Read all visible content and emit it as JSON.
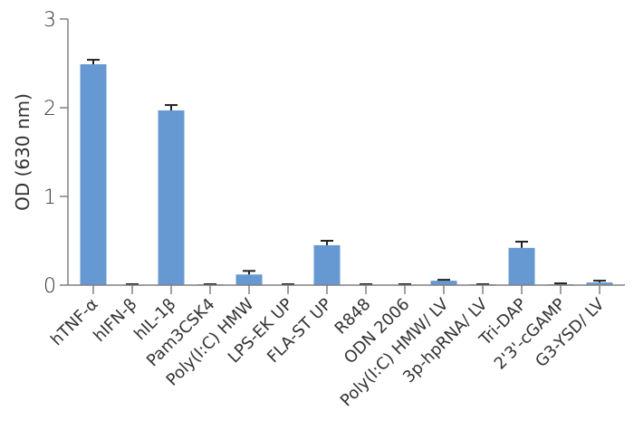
{
  "chart_data": {
    "type": "bar",
    "title": "",
    "xlabel": "",
    "ylabel": "OD (630 nm)",
    "ylim": [
      0,
      3
    ],
    "yticks": [
      0,
      1,
      2,
      3
    ],
    "grid": false,
    "legend": null,
    "bar_color": "#6699D1",
    "categories": [
      "hTNF-α",
      "hIFN-β",
      "hIL-1β",
      "Pam3CSK4",
      "Poly(I:C) HMW",
      "LPS-EK UP",
      "FLA-ST UP",
      "R848",
      "ODN 2006",
      "Poly(I:C) HMW/ LV",
      "3p-hpRNA/ LV",
      "Tri-DAP",
      "2'3'-cGAMP",
      "G3-YSD/ LV"
    ],
    "values": [
      2.49,
      0.0,
      1.97,
      0.01,
      0.12,
      0.0,
      0.45,
      0.0,
      0.0,
      0.05,
      0.01,
      0.42,
      0.01,
      0.03
    ],
    "error_upper": [
      0.05,
      0.0,
      0.06,
      0.0,
      0.04,
      0.0,
      0.05,
      0.0,
      0.0,
      0.01,
      0.0,
      0.07,
      0.01,
      0.02
    ]
  },
  "axis": {
    "y_title": "OD (630 nm)",
    "y_tick_labels": [
      "0",
      "1",
      "2",
      "3"
    ]
  }
}
